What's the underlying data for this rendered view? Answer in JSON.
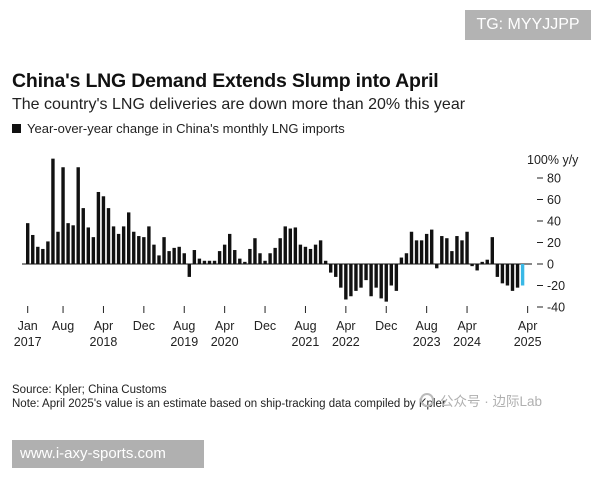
{
  "watermark_tag": "TG: MYYJJPP",
  "title": "China's LNG Demand Extends Slump into April",
  "subtitle": "The country's LNG deliveries are down more than 20% this year",
  "legend": "Year-over-year change in China's monthly LNG imports",
  "footnote_source": "Source: Kpler; China Customs",
  "footnote_note": "Note: April 2025's value is an estimate based on ship-tracking data compiled by Kpler",
  "watermark_logo": "公众号 · 边际Lab",
  "url_bar": "www.i-axy-sports.com",
  "chart_data": {
    "type": "bar",
    "ylabel": "100% y/y",
    "ylim": [
      -45,
      100
    ],
    "yticks": [
      80,
      60,
      40,
      20,
      0,
      -20,
      -40
    ],
    "ytick_labels": [
      "80",
      "60",
      "40",
      "20",
      "0",
      "-20",
      "-40"
    ],
    "x_tick_labels": [
      {
        "month": "Jan",
        "year": "2017",
        "index": 0
      },
      {
        "month": "Aug",
        "year": "",
        "index": 7
      },
      {
        "month": "Apr",
        "year": "2018",
        "index": 15
      },
      {
        "month": "Dec",
        "year": "",
        "index": 23
      },
      {
        "month": "Aug",
        "year": "2019",
        "index": 31
      },
      {
        "month": "Apr",
        "year": "2020",
        "index": 39
      },
      {
        "month": "Dec",
        "year": "",
        "index": 47
      },
      {
        "month": "Aug",
        "year": "2021",
        "index": 55
      },
      {
        "month": "Apr",
        "year": "2022",
        "index": 63
      },
      {
        "month": "Dec",
        "year": "",
        "index": 71
      },
      {
        "month": "Aug",
        "year": "2023",
        "index": 79
      },
      {
        "month": "Apr",
        "year": "2024",
        "index": 87
      },
      {
        "month": "Apr",
        "year": "2025",
        "index": 99
      }
    ],
    "start": "2017-01",
    "values": [
      38,
      27,
      16,
      14,
      21,
      98,
      30,
      90,
      38,
      36,
      90,
      52,
      34,
      25,
      67,
      63,
      52,
      35,
      28,
      35,
      48,
      30,
      26,
      25,
      35,
      18,
      8,
      25,
      12,
      15,
      16,
      10,
      -12,
      13,
      5,
      3,
      3,
      3,
      12,
      18,
      28,
      13,
      5,
      2,
      14,
      24,
      10,
      3,
      10,
      15,
      24,
      35,
      33,
      34,
      18,
      16,
      14,
      18,
      22,
      3,
      -8,
      -12,
      -22,
      -33,
      -30,
      -25,
      -22,
      -15,
      -30,
      -22,
      -32,
      -35,
      -20,
      -25,
      6,
      10,
      30,
      22,
      22,
      28,
      32,
      -4,
      26,
      24,
      12,
      26,
      22,
      30,
      -2,
      -6,
      2,
      4,
      25,
      -12,
      -18,
      -20,
      -25,
      -22,
      -20
    ]
  }
}
